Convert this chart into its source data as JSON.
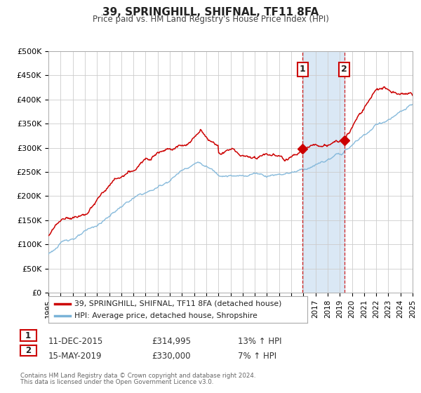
{
  "title": "39, SPRINGHILL, SHIFNAL, TF11 8FA",
  "subtitle": "Price paid vs. HM Land Registry's House Price Index (HPI)",
  "legend_line1": "39, SPRINGHILL, SHIFNAL, TF11 8FA (detached house)",
  "legend_line2": "HPI: Average price, detached house, Shropshire",
  "footnote1": "Contains HM Land Registry data © Crown copyright and database right 2024.",
  "footnote2": "This data is licensed under the Open Government Licence v3.0.",
  "event1_label": "1",
  "event1_date": "11-DEC-2015",
  "event1_price": "£314,995",
  "event1_hpi": "13% ↑ HPI",
  "event2_label": "2",
  "event2_date": "15-MAY-2019",
  "event2_price": "£330,000",
  "event2_hpi": "7% ↑ HPI",
  "event1_year": 2015.95,
  "event2_year": 2019.37,
  "event1_value": 314995,
  "event2_value": 330000,
  "hpi_color": "#7ab3d8",
  "price_color": "#cc0000",
  "marker_color": "#cc0000",
  "shaded_color": "#dae8f5",
  "grid_color": "#cccccc",
  "background_color": "#ffffff",
  "ylim": [
    0,
    500000
  ],
  "xlim_start": 1995,
  "xlim_end": 2025,
  "yticks": [
    0,
    50000,
    100000,
    150000,
    200000,
    250000,
    300000,
    350000,
    400000,
    450000,
    500000
  ],
  "ytick_labels": [
    "£0",
    "£50K",
    "£100K",
    "£150K",
    "£200K",
    "£250K",
    "£300K",
    "£350K",
    "£400K",
    "£450K",
    "£500K"
  ]
}
